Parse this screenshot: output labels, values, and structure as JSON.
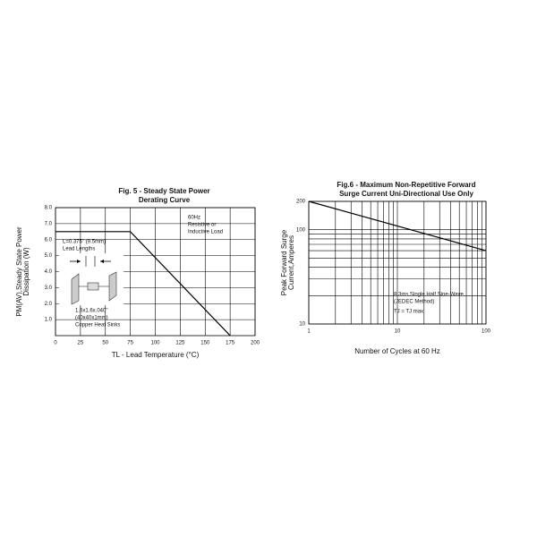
{
  "chart_data": [
    {
      "type": "line",
      "title": [
        "Fig. 5 - Steady State Power",
        "Derating Curve"
      ],
      "xlabel": "TL - Lead Temperature (°C)",
      "ylabel": [
        "PM(AV),Steady State Power",
        "Dissipation (W)"
      ],
      "x": [
        0,
        75,
        175
      ],
      "values": [
        6.5,
        6.5,
        0
      ],
      "color": "#000000",
      "xlim": [
        0,
        200
      ],
      "xticks": [
        0,
        25,
        50,
        75,
        100,
        125,
        150,
        175,
        200
      ],
      "ylim": [
        0,
        8
      ],
      "yticks": [
        {
          "value": 1,
          "label": "1.0"
        },
        {
          "value": 2,
          "label": "2.0"
        },
        {
          "value": 3,
          "label": "3.0"
        },
        {
          "value": 4,
          "label": "4.0"
        },
        {
          "value": 5,
          "label": "5.0"
        },
        {
          "value": 6,
          "label": "6.0"
        },
        {
          "value": 7,
          "label": "7.0"
        },
        {
          "value": 8,
          "label": "8.0"
        }
      ],
      "grid": true,
      "log": false,
      "annotations": [
        [
          "60Hz",
          "Resistive or",
          "Inductive Load"
        ],
        [
          "L=0.375\" (9.5mm)",
          "Lead Lengths"
        ],
        [
          "1.6x1.6x.040\"",
          "(40x40x1mm)",
          "Copper Heat Sinks"
        ]
      ]
    },
    {
      "type": "line",
      "title": [
        "Fig.6 - Maximum Non-Repetitive  Forward",
        "Surge Current Uni-Directional Use Only"
      ],
      "xlabel": "Number of Cycles at 60 Hz",
      "ylabel": [
        "Peak Forward Surge",
        "Current,Amperes"
      ],
      "x": [
        1,
        100
      ],
      "values": [
        200,
        60
      ],
      "color": "#000000",
      "xlim": [
        1,
        100
      ],
      "xticks": [
        1,
        10,
        100
      ],
      "ylim": [
        10,
        200
      ],
      "yticks": [
        10,
        100,
        200
      ],
      "grid": true,
      "log": true,
      "annotations": [
        [
          "8.3ms Single Half Sine-Wave",
          "(JEDEC Method)"
        ],
        [
          "TJ = TJ max."
        ]
      ]
    }
  ]
}
